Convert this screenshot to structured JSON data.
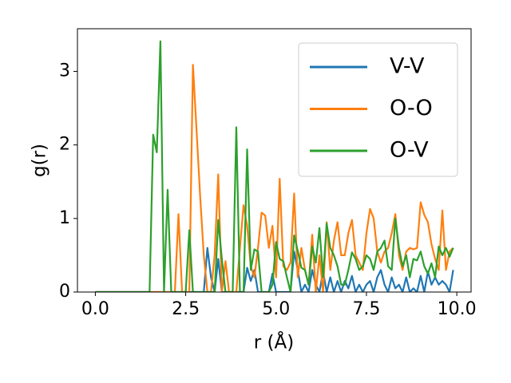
{
  "chart_data": {
    "type": "line",
    "xlabel": "r (Å)",
    "ylabel": "g(r)",
    "x": [
      0,
      0.1,
      0.2,
      0.3,
      0.4,
      0.5,
      0.6,
      0.7,
      0.8,
      0.9,
      1.0,
      1.1,
      1.2,
      1.3,
      1.4,
      1.5,
      1.6,
      1.7,
      1.8,
      1.9,
      2.0,
      2.1,
      2.2,
      2.3,
      2.4,
      2.5,
      2.6,
      2.7,
      2.8,
      2.9,
      3.0,
      3.1,
      3.2,
      3.3,
      3.4,
      3.5,
      3.6,
      3.7,
      3.8,
      3.9,
      4.0,
      4.1,
      4.2,
      4.3,
      4.4,
      4.5,
      4.6,
      4.7,
      4.8,
      4.9,
      5.0,
      5.1,
      5.2,
      5.3,
      5.4,
      5.5,
      5.6,
      5.7,
      5.8,
      5.9,
      6.0,
      6.1,
      6.2,
      6.3,
      6.4,
      6.5,
      6.6,
      6.7,
      6.8,
      6.9,
      7.0,
      7.1,
      7.2,
      7.3,
      7.4,
      7.5,
      7.6,
      7.7,
      7.8,
      7.9,
      8.0,
      8.1,
      8.2,
      8.3,
      8.4,
      8.5,
      8.6,
      8.7,
      8.8,
      8.9,
      9.0,
      9.1,
      9.2,
      9.3,
      9.4,
      9.5,
      9.6,
      9.7,
      9.8,
      9.9
    ],
    "series": [
      {
        "name": "V-V",
        "color": "#1f77b4",
        "values": [
          0,
          0,
          0,
          0,
          0,
          0,
          0,
          0,
          0,
          0,
          0,
          0,
          0,
          0,
          0,
          0,
          0,
          0,
          0,
          0,
          0,
          0,
          0,
          0,
          0,
          0,
          0,
          0,
          0,
          0,
          0,
          0.6,
          0.2,
          0,
          0.45,
          0,
          0,
          0,
          0,
          0,
          0,
          0,
          0.33,
          0.15,
          0.3,
          0,
          0,
          0,
          0,
          0.25,
          0,
          0,
          0,
          0,
          0,
          0.55,
          0.3,
          0,
          0.1,
          0,
          0.3,
          0.1,
          0,
          0.28,
          0,
          0.2,
          0,
          0.15,
          0,
          0.15,
          0.05,
          0.22,
          0,
          0.1,
          0,
          0.1,
          0.15,
          0,
          0.2,
          0.3,
          0.1,
          0,
          0.2,
          0.05,
          0.1,
          0,
          0.2,
          0,
          0.05,
          0,
          0.22,
          0,
          0.28,
          0.1,
          0.2,
          0.1,
          0.15,
          0.1,
          0,
          0.3
        ]
      },
      {
        "name": "O-O",
        "color": "#ff7f0e",
        "values": [
          0,
          0,
          0,
          0,
          0,
          0,
          0,
          0,
          0,
          0,
          0,
          0,
          0,
          0,
          0,
          0,
          0,
          0,
          0,
          0,
          0,
          0,
          0,
          1.06,
          0,
          0,
          0,
          3.09,
          2.2,
          1.3,
          0.5,
          0,
          0,
          0.5,
          1.6,
          0,
          0.42,
          0,
          0,
          0,
          0.6,
          1.18,
          0.9,
          0.35,
          0.2,
          0.6,
          1.08,
          1.04,
          0.6,
          0.9,
          0.2,
          1.54,
          0.35,
          0.3,
          0.4,
          1.34,
          0.2,
          0.6,
          0.3,
          0.1,
          0.78,
          0,
          0.5,
          0,
          0.95,
          0.3,
          0.7,
          0.95,
          0.5,
          0.5,
          0.8,
          0.98,
          0.5,
          0.4,
          0.3,
          0.8,
          1.13,
          1.0,
          0.55,
          0.4,
          0.55,
          0.6,
          0.8,
          1.06,
          0.5,
          0.3,
          0.55,
          0.6,
          0.58,
          0.6,
          1.22,
          1.05,
          0.95,
          0.65,
          0.45,
          0.3,
          1.11,
          0.3,
          0.55,
          0.6
        ]
      },
      {
        "name": "O-V",
        "color": "#2ca02c",
        "values": [
          0,
          0,
          0,
          0,
          0,
          0,
          0,
          0,
          0,
          0,
          0,
          0,
          0,
          0,
          0,
          0,
          2.14,
          1.9,
          3.41,
          0,
          1.39,
          0,
          0,
          0,
          0,
          0,
          0.84,
          0,
          0,
          0,
          0,
          0,
          0,
          0,
          0.98,
          0.45,
          0,
          0,
          0,
          2.24,
          0,
          0,
          1.94,
          0.3,
          0.58,
          0.55,
          0,
          0,
          0,
          0.1,
          0.68,
          0.45,
          0.42,
          0.2,
          0,
          0.77,
          0.56,
          0.33,
          0.3,
          0.1,
          0.62,
          0.4,
          0.87,
          0.2,
          0.93,
          0.6,
          0.5,
          0.35,
          0.1,
          0.1,
          0.3,
          0.54,
          0.45,
          0.3,
          0.35,
          0.5,
          0.45,
          0.3,
          0.55,
          0.6,
          0.7,
          0.35,
          0.3,
          1.0,
          0.6,
          0.35,
          0.5,
          0.2,
          0.45,
          0.43,
          0.55,
          0.35,
          0.25,
          0.39,
          0.2,
          0.62,
          0.5,
          0.6,
          0.48,
          0.6
        ]
      }
    ],
    "xlim": [
      -0.495,
      10.395
    ],
    "ylim": [
      0,
      3.58
    ],
    "xticks": [
      {
        "value": 0,
        "label": "0.0"
      },
      {
        "value": 2.5,
        "label": "2.5"
      },
      {
        "value": 5,
        "label": "5.0"
      },
      {
        "value": 7.5,
        "label": "7.5"
      },
      {
        "value": 10,
        "label": "10.0"
      }
    ],
    "yticks": [
      0,
      1,
      2,
      3
    ],
    "legend": "upper right"
  }
}
